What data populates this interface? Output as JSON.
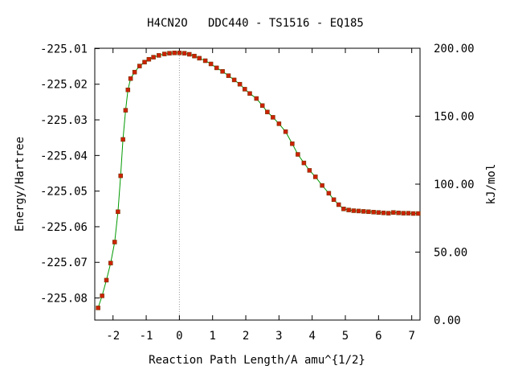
{
  "chart_data": {
    "type": "line",
    "title": "H4CN2O   DDC440 - TS1516 - EQ185",
    "xlabel": "Reaction Path Length/A amu^{1/2}",
    "ylabel": "Energy/Hartree",
    "y2label": "kJ/mol",
    "xlim": [
      -2.55,
      7.25
    ],
    "ylim": [
      -225.0862,
      -225.0099
    ],
    "y2lim": [
      0,
      200
    ],
    "xticks": [
      -2,
      -1,
      0,
      1,
      2,
      3,
      4,
      5,
      6,
      7
    ],
    "xtick_labels": [
      "-2",
      "-1",
      "0",
      "1",
      "2",
      "3",
      "4",
      "5",
      "6",
      "7"
    ],
    "yticks": [
      -225.01,
      -225.02,
      -225.03,
      -225.04,
      -225.05,
      -225.06,
      -225.07,
      -225.08
    ],
    "ytick_labels": [
      "-225.01",
      "-225.02",
      "-225.03",
      "-225.04",
      "-225.05",
      "-225.06",
      "-225.07",
      "-225.08"
    ],
    "y2ticks": [
      0,
      50,
      100,
      150,
      200
    ],
    "y2tick_labels": [
      "0.00",
      "50.00",
      "100.00",
      "150.00",
      "200.00"
    ],
    "grid": false,
    "ts_marker_x": 0,
    "colors": {
      "line": "#009900",
      "marker": "#cc2200",
      "ts_line": "#999999"
    },
    "series": [
      {
        "x": [
          -2.45,
          -2.33,
          -2.2,
          -2.07,
          -1.95,
          -1.85,
          -1.77,
          -1.7,
          -1.62,
          -1.55,
          -1.47,
          -1.35,
          -1.2,
          -1.05,
          -0.92,
          -0.78,
          -0.62,
          -0.45,
          -0.3,
          -0.15,
          0.0,
          0.15,
          0.3,
          0.45,
          0.6,
          0.78,
          0.95,
          1.12,
          1.3,
          1.48,
          1.65,
          1.82,
          1.97,
          2.12,
          2.32,
          2.5,
          2.65,
          2.82,
          3.0,
          3.2,
          3.4,
          3.57,
          3.75,
          3.92,
          4.1,
          4.3,
          4.5,
          4.65,
          4.8,
          4.95,
          5.1,
          5.25,
          5.4,
          5.55,
          5.7,
          5.85,
          6.0,
          6.15,
          6.3,
          6.45,
          6.6,
          6.75,
          6.9,
          7.05,
          7.2
        ],
        "y": [
          -225.0828,
          -225.0794,
          -225.075,
          -225.0702,
          -225.0643,
          -225.0558,
          -225.0457,
          -225.0355,
          -225.0273,
          -225.0216,
          -225.0184,
          -225.0166,
          -225.0149,
          -225.0138,
          -225.013,
          -225.0124,
          -225.0119,
          -225.0115,
          -225.0113,
          -225.0112,
          -225.0112,
          -225.0113,
          -225.0116,
          -225.0121,
          -225.0127,
          -225.0134,
          -225.0143,
          -225.0154,
          -225.0164,
          -225.0176,
          -225.0188,
          -225.02,
          -225.0214,
          -225.0226,
          -225.024,
          -225.026,
          -225.0278,
          -225.0293,
          -225.0311,
          -225.0333,
          -225.0367,
          -225.0397,
          -225.0421,
          -225.0442,
          -225.046,
          -225.0484,
          -225.0506,
          -225.0524,
          -225.0538,
          -225.055,
          -225.0553,
          -225.0555,
          -225.0556,
          -225.0557,
          -225.0558,
          -225.0559,
          -225.056,
          -225.0561,
          -225.0562,
          -225.056,
          -225.0561,
          -225.0562,
          -225.0562,
          -225.0563,
          -225.0563
        ]
      }
    ]
  }
}
